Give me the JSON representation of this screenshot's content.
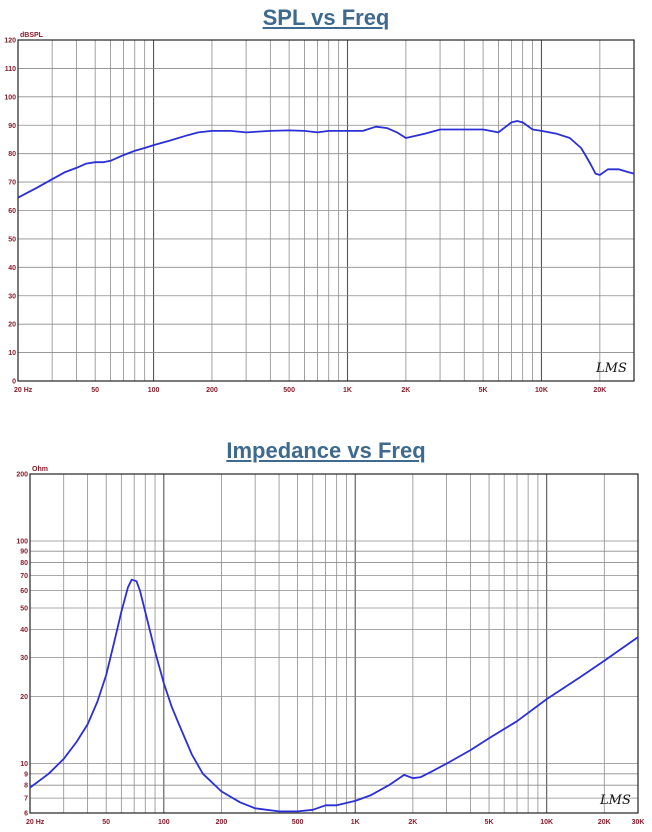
{
  "chart_data": [
    {
      "type": "line",
      "title": "SPL vs Freq",
      "ylabel": "dBSPL",
      "xscale": "log",
      "xlim": [
        20,
        30000
      ],
      "ylim": [
        0,
        120
      ],
      "grid": true,
      "x_tick_labels": [
        "20 Hz",
        "50",
        "100",
        "200",
        "500",
        "1K",
        "2K",
        "5K",
        "10K",
        "20K"
      ],
      "y_tick_labels": [
        "0",
        "10",
        "20",
        "30",
        "40",
        "50",
        "60",
        "70",
        "80",
        "90",
        "100",
        "110",
        "120"
      ],
      "watermark": "LMS",
      "series": [
        {
          "color": "#2b2fd6",
          "x": [
            20,
            22,
            25,
            30,
            35,
            40,
            45,
            50,
            55,
            60,
            70,
            80,
            90,
            100,
            120,
            150,
            170,
            200,
            250,
            300,
            400,
            500,
            600,
            700,
            800,
            900,
            1000,
            1200,
            1400,
            1600,
            1800,
            2000,
            2500,
            3000,
            4000,
            5000,
            6000,
            7000,
            7500,
            8000,
            9000,
            10000,
            12000,
            14000,
            16000,
            17000,
            18000,
            19000,
            20000,
            22000,
            25000,
            28000,
            30000
          ],
          "y": [
            64.5,
            66,
            68,
            71,
            73.5,
            75,
            76.5,
            77,
            77,
            77.5,
            79.5,
            81,
            82,
            83,
            84.5,
            86.5,
            87.5,
            88,
            88,
            87.5,
            88,
            88.2,
            88,
            87.5,
            88,
            88,
            88,
            88,
            89.5,
            89,
            87.5,
            85.5,
            87,
            88.5,
            88.5,
            88.5,
            87.5,
            91,
            91.5,
            91,
            88.5,
            88,
            87,
            85.5,
            82,
            79,
            76,
            73,
            72.5,
            74.5,
            74.5,
            73.5,
            73
          ]
        }
      ]
    },
    {
      "type": "line",
      "title": "Impedance vs Freq",
      "ylabel": "Ohm",
      "xscale": "log",
      "yscale": "log",
      "xlim": [
        20,
        30000
      ],
      "ylim": [
        6,
        200
      ],
      "grid": true,
      "x_tick_labels": [
        "20 Hz",
        "50",
        "100",
        "200",
        "500",
        "1K",
        "2K",
        "5K",
        "10K",
        "20K",
        "30K"
      ],
      "y_tick_labels": [
        "200",
        "100",
        "90",
        "80",
        "70",
        "60",
        "50",
        "40",
        "30",
        "20",
        "10",
        "9",
        "8",
        "7",
        "6"
      ],
      "watermark": "LMS",
      "series": [
        {
          "color": "#2b2fd6",
          "x": [
            20,
            25,
            30,
            35,
            40,
            45,
            50,
            55,
            60,
            65,
            68,
            72,
            75,
            80,
            90,
            100,
            110,
            120,
            140,
            160,
            200,
            250,
            300,
            400,
            500,
            600,
            700,
            800,
            1000,
            1200,
            1500,
            1800,
            2000,
            2200,
            2500,
            3000,
            4000,
            5000,
            7000,
            10000,
            15000,
            20000,
            30000
          ],
          "y": [
            7.8,
            9,
            10.5,
            12.5,
            15,
            19,
            25,
            35,
            48,
            62,
            67,
            66,
            60,
            48,
            32,
            23,
            18,
            15,
            11,
            9,
            7.5,
            6.7,
            6.3,
            6.1,
            6.1,
            6.2,
            6.5,
            6.5,
            6.8,
            7.2,
            8,
            8.9,
            8.6,
            8.7,
            9.2,
            10,
            11.5,
            13,
            15.5,
            19.5,
            24.5,
            29,
            37
          ]
        }
      ]
    }
  ]
}
